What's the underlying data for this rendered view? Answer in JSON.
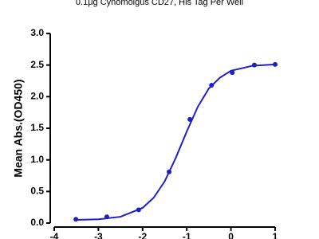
{
  "chart_data": {
    "type": "scatter",
    "title": "0.1μg Cynomolgus CD27, His Tag Per Well",
    "y_label": "Mean Abs.(OD450)",
    "xlim": [
      -4,
      1
    ],
    "xticks": [
      -4,
      -3,
      -2,
      -1,
      0,
      1
    ],
    "ylim": [
      0,
      3
    ],
    "yticks": [
      {
        "value": 0,
        "label": "0.0"
      },
      {
        "value": 0.5,
        "label": "0.5"
      },
      {
        "value": 1,
        "label": "1.0"
      },
      {
        "value": 1.5,
        "label": "1.5"
      },
      {
        "value": 2,
        "label": "2.0"
      },
      {
        "value": 2.5,
        "label": "2.5"
      },
      {
        "value": 3,
        "label": "3.0"
      }
    ],
    "color": "#1f1fc8",
    "x": [
      -3.51,
      -2.81,
      -2.09,
      -1.4,
      -0.93,
      -0.44,
      0.03,
      0.53,
      1.0
    ],
    "values": [
      0.06,
      0.1,
      0.21,
      0.81,
      1.64,
      2.18,
      2.38,
      2.5,
      2.51
    ],
    "fit_x": [
      -3.5,
      -3,
      -2.5,
      -2,
      -1.75,
      -1.5,
      -1.25,
      -1,
      -0.75,
      -0.5,
      -0.25,
      0,
      0.5,
      1
    ],
    "fit_values": [
      0.05,
      0.06,
      0.1,
      0.24,
      0.4,
      0.66,
      1.03,
      1.45,
      1.84,
      2.13,
      2.3,
      2.41,
      2.49,
      2.51
    ]
  }
}
